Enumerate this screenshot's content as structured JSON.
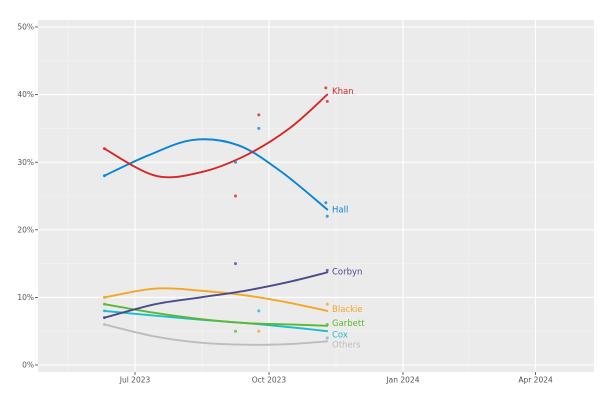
{
  "chart_data": {
    "type": "scatter",
    "title": "",
    "xlabel": "",
    "ylabel": "",
    "ylim": [
      0,
      50
    ],
    "xlim": [
      "2023-05-01",
      "2024-05-31"
    ],
    "grid": true,
    "legend_position": "direct-labels-right-of-last-point",
    "y_ticks": [
      {
        "value": 0,
        "label": "0%"
      },
      {
        "value": 10,
        "label": "10%"
      },
      {
        "value": 20,
        "label": "20%"
      },
      {
        "value": 30,
        "label": "30%"
      },
      {
        "value": 40,
        "label": "40%"
      },
      {
        "value": 50,
        "label": "50%"
      }
    ],
    "x_ticks": [
      {
        "date": "2023-07-01",
        "label": "Jul 2023"
      },
      {
        "date": "2023-10-01",
        "label": "Oct 2023"
      },
      {
        "date": "2024-01-01",
        "label": "Jan 2024"
      },
      {
        "date": "2024-04-01",
        "label": "Apr 2024"
      }
    ],
    "series": [
      {
        "name": "Khan",
        "color": "#d62728",
        "points": [
          [
            "2023-06-10",
            32
          ],
          [
            "2023-09-08",
            25
          ],
          [
            "2023-09-24",
            37
          ],
          [
            "2023-11-09",
            41
          ],
          [
            "2023-11-10",
            39
          ]
        ],
        "trend": [
          [
            "2023-06-10",
            32
          ],
          [
            "2023-07-15",
            28
          ],
          [
            "2023-08-15",
            28.5
          ],
          [
            "2023-09-15",
            31
          ],
          [
            "2023-10-15",
            35
          ],
          [
            "2023-11-10",
            40
          ]
        ]
      },
      {
        "name": "Hall",
        "color": "#0a84d6",
        "points": [
          [
            "2023-06-10",
            28
          ],
          [
            "2023-09-08",
            30
          ],
          [
            "2023-09-24",
            35
          ],
          [
            "2023-11-09",
            24
          ],
          [
            "2023-11-10",
            22
          ]
        ],
        "trend": [
          [
            "2023-06-10",
            28
          ],
          [
            "2023-07-10",
            31
          ],
          [
            "2023-08-10",
            33.3
          ],
          [
            "2023-09-10",
            32.5
          ],
          [
            "2023-10-10",
            28.5
          ],
          [
            "2023-11-10",
            23
          ]
        ]
      },
      {
        "name": "Corbyn",
        "color": "#4b4a8a",
        "points": [
          [
            "2023-06-10",
            7
          ],
          [
            "2023-09-08",
            15
          ],
          [
            "2023-11-10",
            14
          ]
        ],
        "trend": [
          [
            "2023-06-10",
            7
          ],
          [
            "2023-07-15",
            9
          ],
          [
            "2023-08-15",
            10
          ],
          [
            "2023-09-15",
            11
          ],
          [
            "2023-10-15",
            12.3
          ],
          [
            "2023-11-10",
            13.7
          ]
        ]
      },
      {
        "name": "Blackie",
        "color": "#f5a623",
        "points": [
          [
            "2023-06-10",
            10
          ],
          [
            "2023-09-24",
            5
          ],
          [
            "2023-11-10",
            9
          ]
        ],
        "trend": [
          [
            "2023-06-10",
            10
          ],
          [
            "2023-07-15",
            11.3
          ],
          [
            "2023-08-15",
            11
          ],
          [
            "2023-09-15",
            10.3
          ],
          [
            "2023-10-15",
            9.2
          ],
          [
            "2023-11-10",
            8
          ]
        ]
      },
      {
        "name": "Garbett",
        "color": "#5cb82e",
        "points": [
          [
            "2023-06-10",
            9
          ],
          [
            "2023-09-08",
            5
          ],
          [
            "2023-11-10",
            6
          ]
        ],
        "trend": [
          [
            "2023-06-10",
            9
          ],
          [
            "2023-07-15",
            7.7
          ],
          [
            "2023-08-15",
            6.8
          ],
          [
            "2023-09-15",
            6.2
          ],
          [
            "2023-10-15",
            6
          ],
          [
            "2023-11-10",
            5.8
          ]
        ]
      },
      {
        "name": "Cox",
        "color": "#17becf",
        "points": [
          [
            "2023-06-10",
            8
          ],
          [
            "2023-09-24",
            8
          ],
          [
            "2023-11-10",
            4
          ]
        ],
        "trend": [
          [
            "2023-06-10",
            8
          ],
          [
            "2023-07-15",
            7.3
          ],
          [
            "2023-08-15",
            6.7
          ],
          [
            "2023-09-15",
            6.2
          ],
          [
            "2023-10-15",
            5.6
          ],
          [
            "2023-11-10",
            5
          ]
        ]
      },
      {
        "name": "Others",
        "color": "#bdbdbd",
        "points": [
          [
            "2023-06-10",
            6
          ],
          [
            "2023-11-10",
            4
          ]
        ],
        "trend": [
          [
            "2023-06-10",
            6
          ],
          [
            "2023-07-15",
            4.2
          ],
          [
            "2023-08-15",
            3.3
          ],
          [
            "2023-09-15",
            3
          ],
          [
            "2023-10-15",
            3.1
          ],
          [
            "2023-11-10",
            3.5
          ]
        ]
      }
    ],
    "direct_labels": [
      {
        "name": "Khan",
        "y": 40.5
      },
      {
        "name": "Hall",
        "y": 23
      },
      {
        "name": "Corbyn",
        "y": 13.8
      },
      {
        "name": "Blackie",
        "y": 8.3
      },
      {
        "name": "Garbett",
        "y": 6.2
      },
      {
        "name": "Cox",
        "y": 4.5
      },
      {
        "name": "Others",
        "y": 3
      }
    ]
  },
  "style": {
    "panel_bg": "#ebebeb",
    "grid_major": "#ffffff",
    "grid_minor": "#f3f3f3"
  }
}
